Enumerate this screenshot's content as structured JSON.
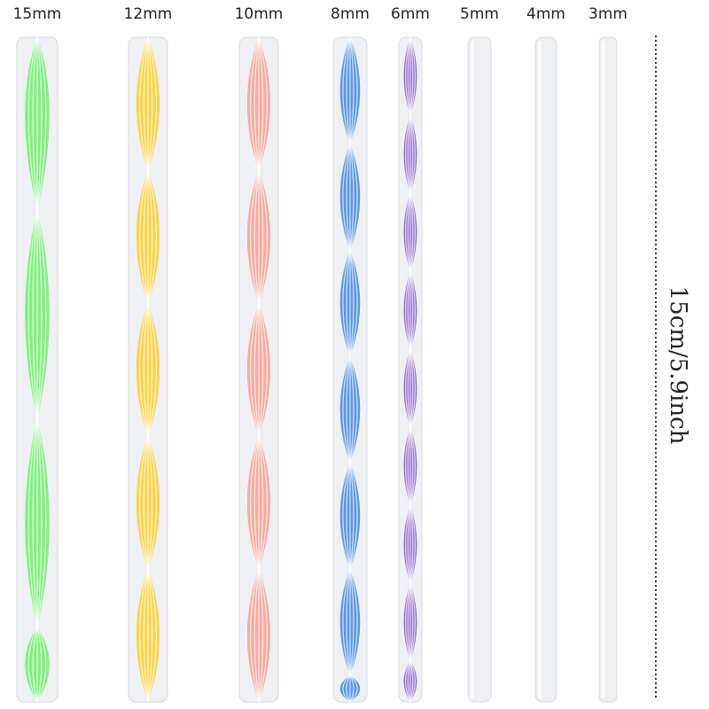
{
  "rods": [
    {
      "label": "15mm"
    },
    {
      "label": "12mm"
    },
    {
      "label": "10mm"
    },
    {
      "label": "8mm"
    },
    {
      "label": "6mm"
    },
    {
      "label": "5mm"
    },
    {
      "label": "4mm"
    },
    {
      "label": "3mm"
    }
  ],
  "measurement": "15cm/5.9inch"
}
